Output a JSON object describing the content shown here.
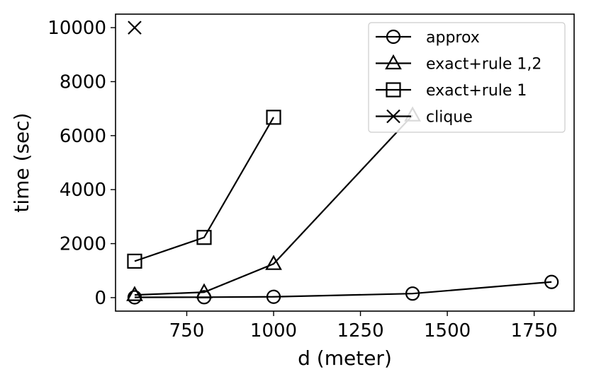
{
  "chart_data": {
    "type": "line",
    "title": "",
    "xlabel": "d (meter)",
    "ylabel": "time (sec)",
    "xlim": [
      545,
      1865
    ],
    "ylim": [
      -500,
      10500
    ],
    "xticks": [
      750,
      1000,
      1250,
      1500,
      1750
    ],
    "yticks": [
      0,
      2000,
      4000,
      6000,
      8000,
      10000
    ],
    "grid": false,
    "legend_position": "top-right",
    "series": [
      {
        "name": "approx",
        "marker": "circle",
        "x": [
          600,
          800,
          1000,
          1400,
          1800
        ],
        "y": [
          10,
          15,
          30,
          150,
          580
        ]
      },
      {
        "name": "exact+rule 1,2",
        "marker": "triangle",
        "x": [
          600,
          800,
          1000,
          1400
        ],
        "y": [
          100,
          200,
          1250,
          6750
        ]
      },
      {
        "name": "exact+rule 1",
        "marker": "square",
        "x": [
          600,
          800,
          1000
        ],
        "y": [
          1350,
          2230,
          6680
        ]
      },
      {
        "name": "clique",
        "marker": "x",
        "x": [
          600
        ],
        "y": [
          10000
        ]
      }
    ],
    "colors": {
      "line": "#000000",
      "background": "#ffffff"
    }
  }
}
